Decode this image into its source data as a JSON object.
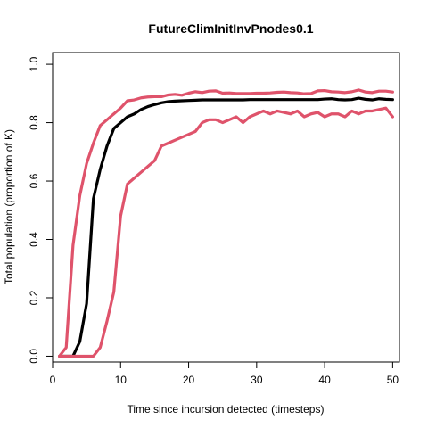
{
  "chart_data": {
    "type": "line",
    "title": "FutureClimInitInvPnodes0.1",
    "xlabel": "Time since incursion detected (timesteps)",
    "ylabel": "Total population (proportion of K)",
    "xlim": [
      0,
      51
    ],
    "ylim": [
      -0.02,
      1.04
    ],
    "x_ticks": [
      0,
      10,
      20,
      30,
      40,
      50
    ],
    "x_tick_labels": [
      "0",
      "10",
      "20",
      "30",
      "40",
      "50"
    ],
    "y_ticks": [
      0.0,
      0.2,
      0.4,
      0.6,
      0.8,
      1.0
    ],
    "y_tick_labels": [
      "0.0",
      "0.2",
      "0.4",
      "0.6",
      "0.8",
      "1.0"
    ],
    "grid": false,
    "x": [
      1,
      2,
      3,
      4,
      5,
      6,
      7,
      8,
      9,
      10,
      11,
      12,
      13,
      14,
      15,
      16,
      17,
      18,
      19,
      20,
      21,
      22,
      23,
      24,
      25,
      26,
      27,
      28,
      29,
      30,
      31,
      32,
      33,
      34,
      35,
      36,
      37,
      38,
      39,
      40,
      41,
      42,
      43,
      44,
      45,
      46,
      47,
      48,
      49,
      50
    ],
    "series": [
      {
        "color": "#000000",
        "width": 3.2,
        "values": [
          0.0,
          0.0,
          0.0,
          0.05,
          0.18,
          0.54,
          0.64,
          0.72,
          0.78,
          0.8,
          0.82,
          0.83,
          0.845,
          0.855,
          0.862,
          0.868,
          0.872,
          0.874,
          0.875,
          0.876,
          0.877,
          0.878,
          0.878,
          0.878,
          0.878,
          0.878,
          0.878,
          0.878,
          0.879,
          0.879,
          0.879,
          0.879,
          0.879,
          0.879,
          0.879,
          0.879,
          0.879,
          0.879,
          0.879,
          0.881,
          0.882,
          0.879,
          0.878,
          0.879,
          0.884,
          0.88,
          0.878,
          0.882,
          0.88,
          0.879
        ]
      },
      {
        "color": "#DF536B",
        "width": 3.2,
        "values": [
          0.0,
          0.03,
          0.38,
          0.55,
          0.66,
          0.73,
          0.79,
          0.81,
          0.83,
          0.85,
          0.875,
          0.878,
          0.885,
          0.888,
          0.889,
          0.889,
          0.895,
          0.897,
          0.894,
          0.901,
          0.906,
          0.903,
          0.908,
          0.909,
          0.901,
          0.902,
          0.9,
          0.9,
          0.9,
          0.901,
          0.901,
          0.902,
          0.904,
          0.905,
          0.903,
          0.902,
          0.899,
          0.9,
          0.909,
          0.91,
          0.906,
          0.905,
          0.903,
          0.906,
          0.912,
          0.905,
          0.903,
          0.908,
          0.908,
          0.905
        ]
      },
      {
        "color": "#DF536B",
        "width": 3.2,
        "values": [
          0.0,
          0.0,
          0.0,
          0.0,
          0.0,
          0.0,
          0.03,
          0.12,
          0.22,
          0.48,
          0.59,
          0.61,
          0.63,
          0.65,
          0.67,
          0.72,
          0.73,
          0.74,
          0.75,
          0.76,
          0.77,
          0.8,
          0.81,
          0.81,
          0.8,
          0.81,
          0.82,
          0.8,
          0.82,
          0.83,
          0.84,
          0.83,
          0.84,
          0.835,
          0.83,
          0.84,
          0.82,
          0.83,
          0.835,
          0.82,
          0.83,
          0.83,
          0.82,
          0.84,
          0.83,
          0.84,
          0.84,
          0.845,
          0.85,
          0.82
        ]
      }
    ]
  }
}
